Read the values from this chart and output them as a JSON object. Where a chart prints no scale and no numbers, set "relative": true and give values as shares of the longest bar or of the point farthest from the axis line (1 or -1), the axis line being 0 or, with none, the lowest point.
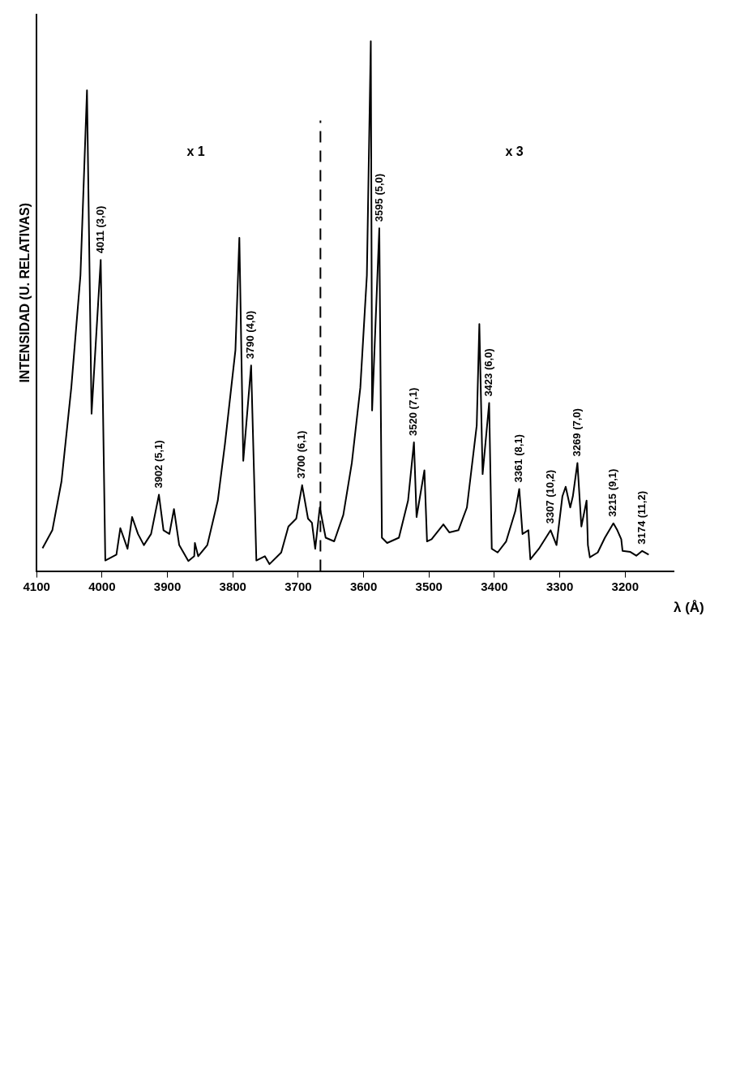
{
  "chart_data": {
    "type": "line",
    "relative": true,
    "xlabel": "λ (Å)",
    "ylabel": "INTENSIDAD (U. RELATIVAS)",
    "xlim": [
      4100,
      3126
    ],
    "xticks": [
      3200,
      3300,
      3400,
      3500,
      3600,
      3700,
      3800,
      3900,
      4000,
      4100
    ],
    "grid": false,
    "legend": false,
    "marker": "none",
    "line_style": "solid",
    "x": [
      3164,
      3174,
      3183,
      3192,
      3204,
      3206,
      3212,
      3218,
      3231,
      3242,
      3254,
      3257,
      3259,
      3267,
      3273,
      3280,
      3284,
      3291,
      3296,
      3305,
      3314,
      3332,
      3345,
      3348,
      3357,
      3362,
      3368,
      3382,
      3395,
      3404,
      3408,
      3418,
      3423,
      3427,
      3442,
      3455,
      3469,
      3478,
      3496,
      3503,
      3507,
      3519,
      3523,
      3532,
      3546,
      3564,
      3572,
      3576,
      3587,
      3589,
      3595,
      3605,
      3618,
      3631,
      3645,
      3658,
      3667,
      3674,
      3679,
      3685,
      3694,
      3703,
      3715,
      3726,
      3744,
      3751,
      3764,
      3772,
      3784,
      3790,
      3796,
      3812,
      3823,
      3839,
      3853,
      3858,
      3859,
      3868,
      3882,
      3890,
      3897,
      3906,
      3913,
      3925,
      3936,
      3945,
      3954,
      3961,
      3972,
      3978,
      3995,
      4002,
      4016,
      4023,
      4033,
      4047,
      4062,
      4076,
      4091
    ],
    "series": [
      {
        "color": "#000000",
        "values": [
          0.031,
          0.038,
          0.029,
          0.036,
          0.038,
          0.06,
          0.077,
          0.09,
          0.063,
          0.035,
          0.026,
          0.049,
          0.133,
          0.084,
          0.204,
          0.141,
          0.12,
          0.159,
          0.141,
          0.049,
          0.077,
          0.042,
          0.022,
          0.077,
          0.07,
          0.155,
          0.113,
          0.056,
          0.035,
          0.042,
          0.317,
          0.183,
          0.466,
          0.275,
          0.12,
          0.077,
          0.073,
          0.088,
          0.06,
          0.056,
          0.19,
          0.102,
          0.243,
          0.133,
          0.063,
          0.053,
          0.063,
          0.647,
          0.303,
          1.0,
          0.558,
          0.346,
          0.204,
          0.106,
          0.056,
          0.063,
          0.12,
          0.042,
          0.091,
          0.099,
          0.162,
          0.099,
          0.084,
          0.035,
          0.013,
          0.028,
          0.02,
          0.388,
          0.208,
          0.629,
          0.417,
          0.24,
          0.133,
          0.049,
          0.028,
          0.053,
          0.028,
          0.019,
          0.049,
          0.117,
          0.07,
          0.077,
          0.144,
          0.07,
          0.049,
          0.07,
          0.102,
          0.042,
          0.081,
          0.031,
          0.02,
          0.587,
          0.297,
          0.907,
          0.558,
          0.346,
          0.169,
          0.077,
          0.043
        ]
      }
    ],
    "ref_lines": [
      {
        "axis": "x",
        "value": 3666,
        "line_style": "dashed",
        "color": "#000000"
      }
    ],
    "annotations": [
      {
        "text": "4011 (3,0)",
        "x": 4002,
        "y": 0.587
      },
      {
        "text": "3902 (5,1)",
        "x": 3913,
        "y": 0.144
      },
      {
        "text": "3790 (4,0)",
        "x": 3772,
        "y": 0.388
      },
      {
        "text": "3700 (6,1)",
        "x": 3694,
        "y": 0.162
      },
      {
        "text": "3595 (5,0)",
        "x": 3576,
        "y": 0.647
      },
      {
        "text": "3520 (7,1)",
        "x": 3523,
        "y": 0.243
      },
      {
        "text": "3423 (6,0)",
        "x": 3408,
        "y": 0.317
      },
      {
        "text": "3361 (8,1)",
        "x": 3362,
        "y": 0.155
      },
      {
        "text": "3307 (10,2)",
        "x": 3314,
        "y": 0.077
      },
      {
        "text": "3269 (7,0)",
        "x": 3273,
        "y": 0.204
      },
      {
        "text": "3215 (9,1)",
        "x": 3218,
        "y": 0.09
      },
      {
        "text": "3174 (11,2)",
        "x": 3174,
        "y": 0.038
      },
      "x 1",
      "x 3"
    ]
  }
}
